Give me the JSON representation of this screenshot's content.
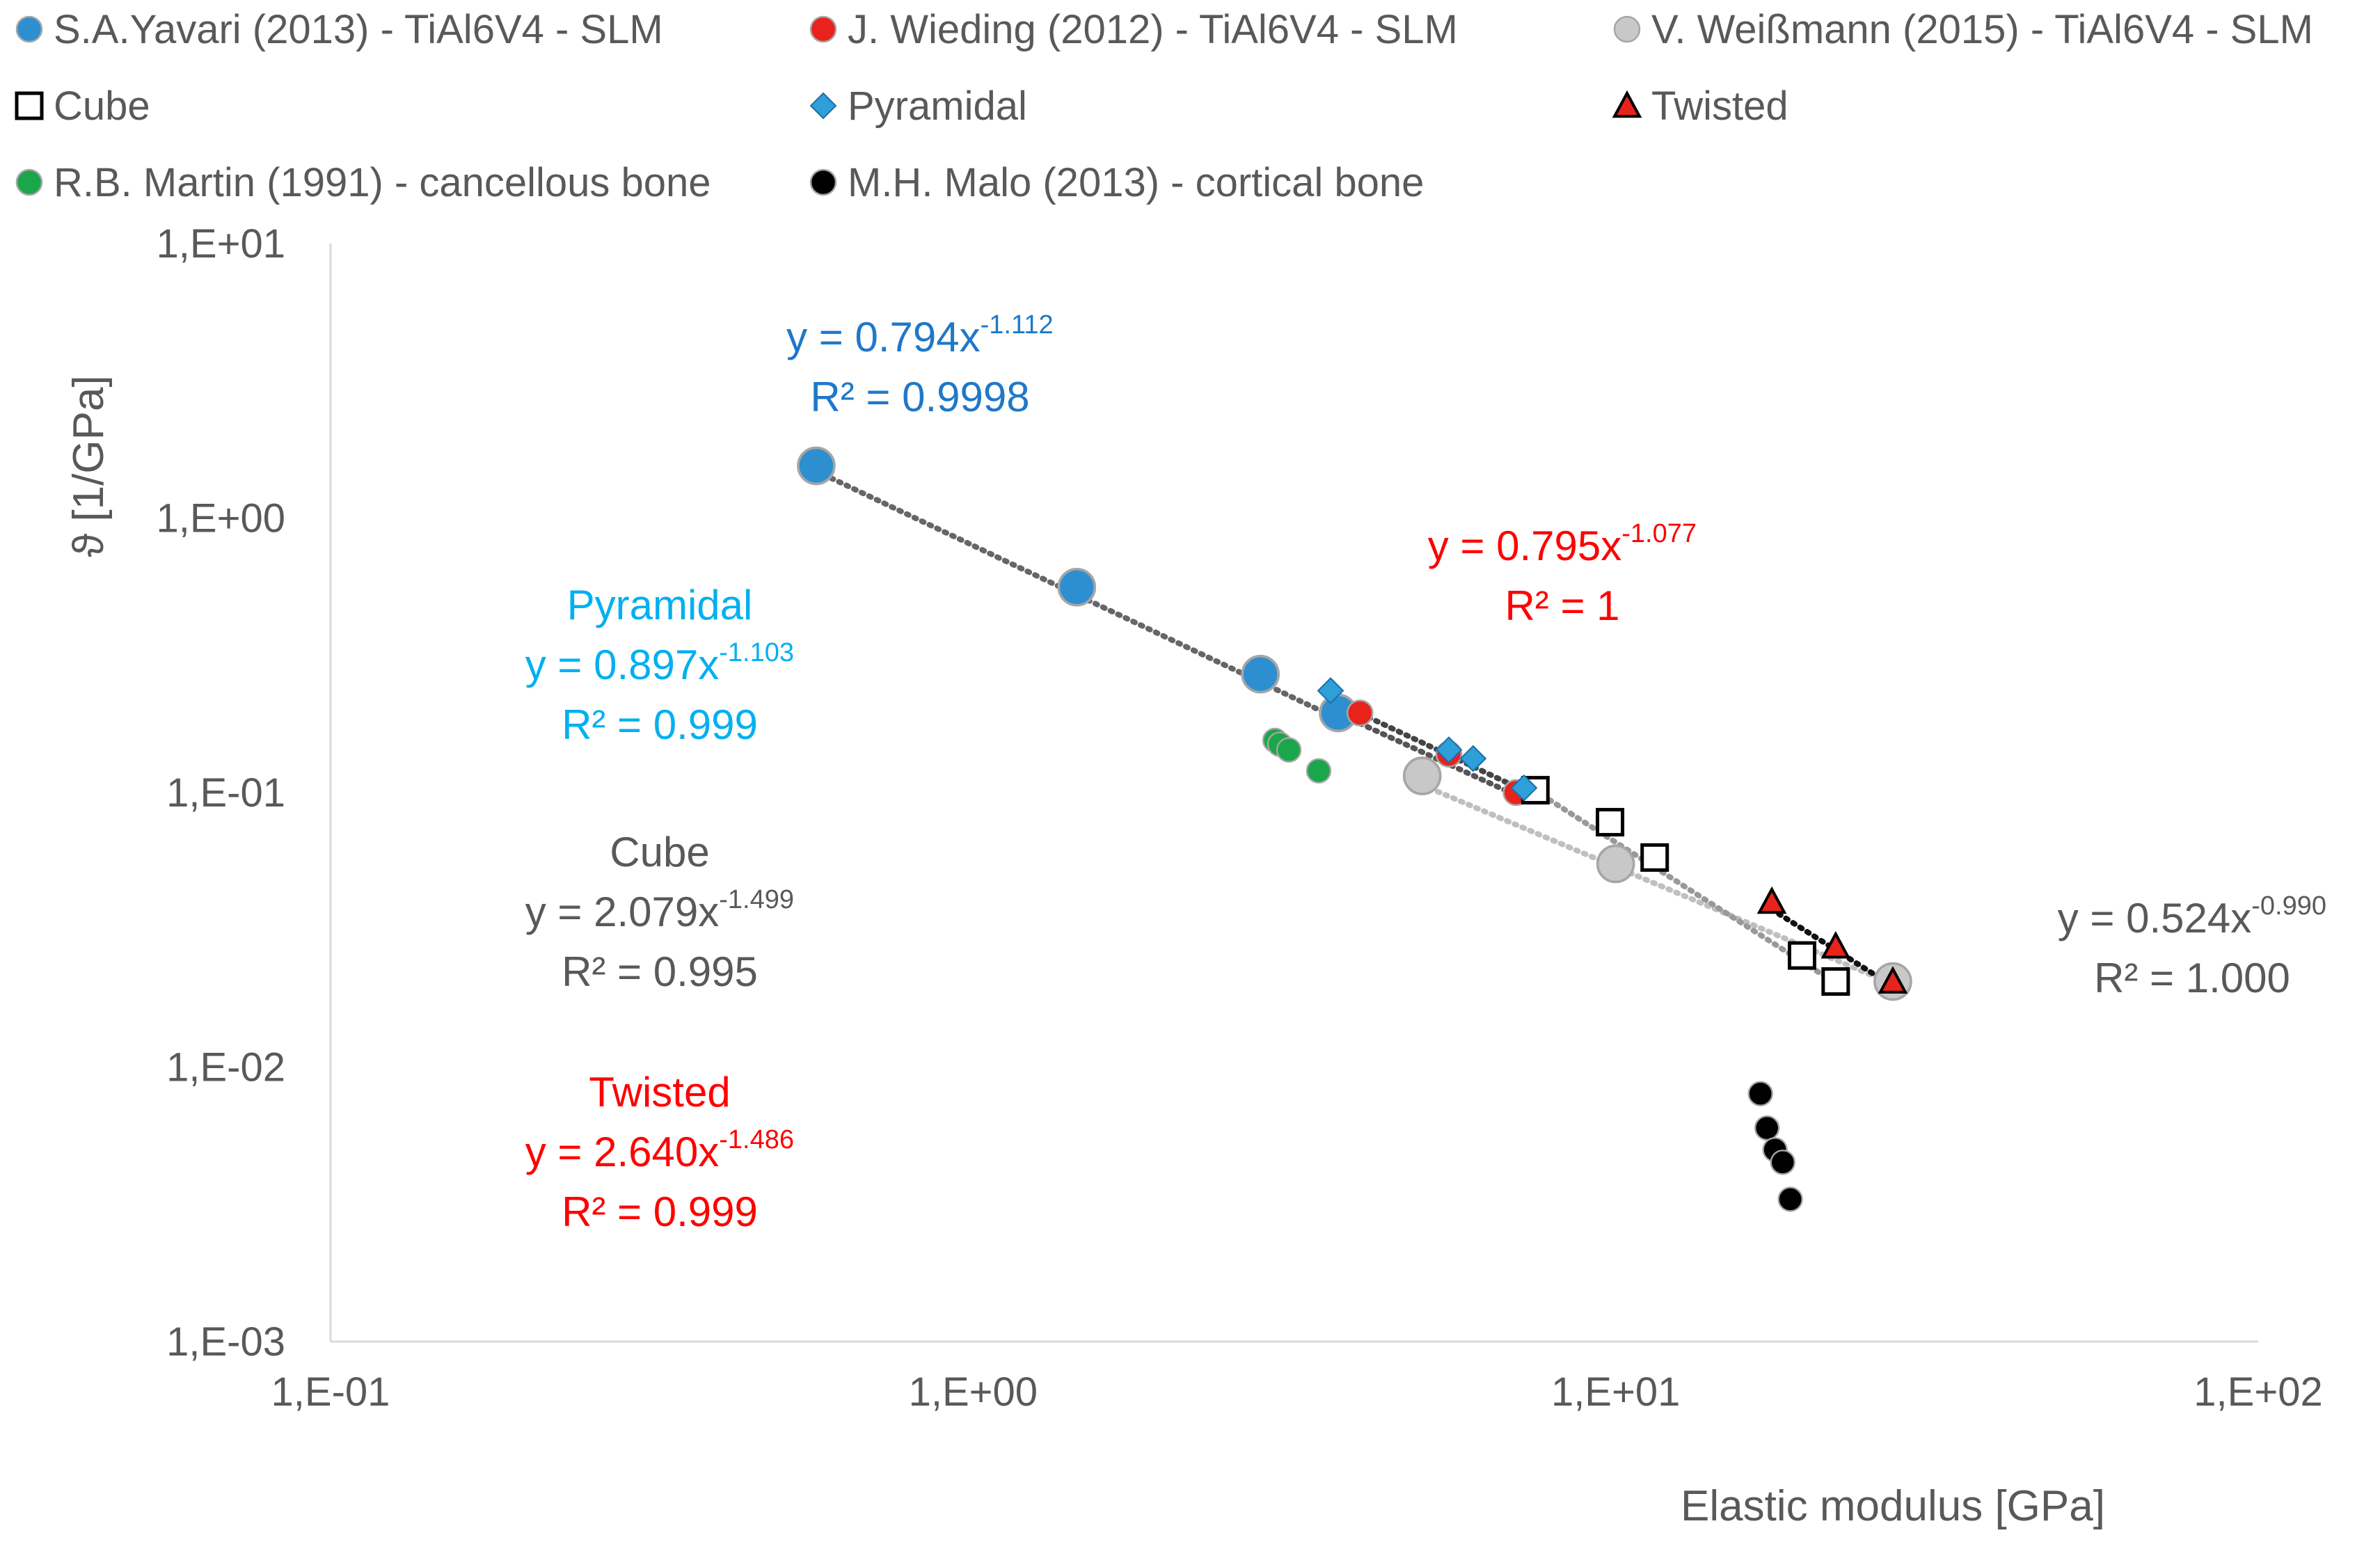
{
  "chart_data": {
    "type": "scatter",
    "x_scale": "log",
    "y_scale": "log",
    "xlabel": "Elastic modulus [GPa]",
    "ylabel": "ϑ [1/GPa]",
    "xlim": [
      0.1,
      100
    ],
    "ylim": [
      0.001,
      10
    ],
    "x_ticks": [
      "1,E-01",
      "1,E+00",
      "1,E+01",
      "1,E+02"
    ],
    "y_ticks": [
      "1,E+01",
      "1,E+00",
      "1,E-01",
      "1,E-02",
      "1,E-03"
    ],
    "grid": false,
    "legend_position": "top",
    "legend": [
      {
        "label": "S.A.Yavari (2013) -  TiAl6V4 - SLM",
        "marker": "circle",
        "color": "#2e8fd0"
      },
      {
        "label": "J. Wieding (2012) - TiAl6V4 - SLM",
        "marker": "circle",
        "color": "#e8231c"
      },
      {
        "label": "V. Weißmann (2015) - TiAl6V4 - SLM",
        "marker": "circle",
        "color": "#c8c8c8"
      },
      {
        "label": "Cube",
        "marker": "square-open",
        "color": "#000000"
      },
      {
        "label": "Pyramidal",
        "marker": "diamond",
        "color": "#2e9fd8"
      },
      {
        "label": "Twisted",
        "marker": "triangle",
        "color": "#e8231c"
      },
      {
        "label": "R.B. Martin (1991) - cancellous bone",
        "marker": "circle",
        "color": "#1aa64a"
      },
      {
        "label": "M.H. Malo (2013) - cortical bone",
        "marker": "circle",
        "color": "#000000"
      }
    ],
    "series": [
      {
        "name": "S.A.Yavari (2013) -  TiAl6V4 - SLM",
        "color": "#2e8fd0",
        "marker": "circle",
        "size": "large",
        "points": [
          [
            0.57,
            1.55
          ],
          [
            1.45,
            0.56
          ],
          [
            2.8,
            0.27
          ],
          [
            3.7,
            0.195
          ]
        ]
      },
      {
        "name": "J. Wieding (2012) - TiAl6V4 - SLM",
        "color": "#e8231c",
        "marker": "circle",
        "size": "medium",
        "points": [
          [
            4.0,
            0.195
          ],
          [
            5.5,
            0.138
          ],
          [
            7.0,
            0.1
          ]
        ]
      },
      {
        "name": "V. Weißmann (2015) - TiAl6V4 - SLM",
        "color": "#c8c8c8",
        "marker": "circle",
        "size": "large",
        "points": [
          [
            5.0,
            0.115
          ],
          [
            10.0,
            0.055
          ],
          [
            27.0,
            0.0205
          ]
        ]
      },
      {
        "name": "Cube",
        "color": "#000000",
        "marker": "square-open",
        "size": "medium",
        "points": [
          [
            7.5,
            0.102
          ],
          [
            9.8,
            0.078
          ],
          [
            11.5,
            0.058
          ],
          [
            19.5,
            0.0255
          ],
          [
            22.0,
            0.0205
          ]
        ]
      },
      {
        "name": "Pyramidal",
        "color": "#2e9fd8",
        "marker": "diamond",
        "size": "medium",
        "points": [
          [
            3.6,
            0.235
          ],
          [
            5.5,
            0.143
          ],
          [
            6.0,
            0.133
          ],
          [
            7.2,
            0.104
          ]
        ]
      },
      {
        "name": "Twisted",
        "color": "#e8231c",
        "marker": "triangle",
        "size": "medium",
        "points": [
          [
            17.5,
            0.04
          ],
          [
            22.0,
            0.0275
          ],
          [
            27.0,
            0.0205
          ]
        ]
      },
      {
        "name": "R.B. Martin (1991) - cancellous bone",
        "color": "#1aa64a",
        "marker": "circle",
        "size": "small",
        "points": [
          [
            2.95,
            0.155
          ],
          [
            3.0,
            0.15
          ],
          [
            3.1,
            0.143
          ],
          [
            3.45,
            0.12
          ]
        ]
      },
      {
        "name": "M.H. Malo (2013) - cortical bone",
        "color": "#000000",
        "marker": "circle",
        "size": "small",
        "points": [
          [
            16.8,
            0.008
          ],
          [
            17.2,
            0.006
          ],
          [
            17.7,
            0.005
          ],
          [
            18.2,
            0.0045
          ],
          [
            18.7,
            0.0033
          ]
        ]
      }
    ],
    "trendlines": [
      {
        "label": "S.A.Yavari fit",
        "a": 0.794,
        "b": -1.112,
        "x_range": [
          0.57,
          3.7
        ],
        "color": "#666666"
      },
      {
        "label": "J. Wieding fit",
        "a": 0.795,
        "b": -1.077,
        "x_range": [
          4.0,
          7.0
        ],
        "color": "#555555"
      },
      {
        "label": "V. Weißmann fit",
        "a": 0.524,
        "b": -0.99,
        "x_range": [
          5.0,
          27.0
        ],
        "color": "#bfbfbf"
      },
      {
        "label": "Pyramidal fit",
        "a": 0.897,
        "b": -1.103,
        "x_range": [
          3.6,
          7.2
        ],
        "color": "#444444"
      },
      {
        "label": "Cube fit",
        "a": 2.079,
        "b": -1.499,
        "x_range": [
          7.5,
          22.0
        ],
        "color": "#999999"
      },
      {
        "label": "Twisted fit",
        "a": 2.64,
        "b": -1.486,
        "x_range": [
          17.5,
          27.0
        ],
        "color": "#111111"
      }
    ],
    "annotations": [
      {
        "id": "yavari",
        "color": "#1f78c8",
        "lines": [
          {
            "text": "y = 0.794x",
            "sup": "-1.112"
          },
          {
            "text": "R² = 0.9998"
          }
        ]
      },
      {
        "id": "wieding",
        "color": "#ff0000",
        "lines": [
          {
            "text": "y = 0.795x",
            "sup": "-1.077"
          },
          {
            "text": "R² = 1"
          }
        ]
      },
      {
        "id": "pyramidal",
        "color": "#00b0f0",
        "lines": [
          {
            "text": "Pyramidal"
          },
          {
            "text": "y = 0.897x",
            "sup": "-1.103"
          },
          {
            "text": "R² = 0.999"
          }
        ]
      },
      {
        "id": "cube",
        "color": "#595959",
        "lines": [
          {
            "text": "Cube"
          },
          {
            "text": "y = 2.079x",
            "sup": "-1.499"
          },
          {
            "text": "R² = 0.995"
          }
        ]
      },
      {
        "id": "twisted",
        "color": "#ff0000",
        "lines": [
          {
            "text": "Twisted"
          },
          {
            "text": "y = 2.640x",
            "sup": "-1.486"
          },
          {
            "text": "R² = 0.999"
          }
        ]
      },
      {
        "id": "weissmann",
        "color": "#595959",
        "lines": [
          {
            "text": "y = 0.524x",
            "sup": "-0.990"
          },
          {
            "text": "R² = 1.000"
          }
        ]
      }
    ]
  }
}
